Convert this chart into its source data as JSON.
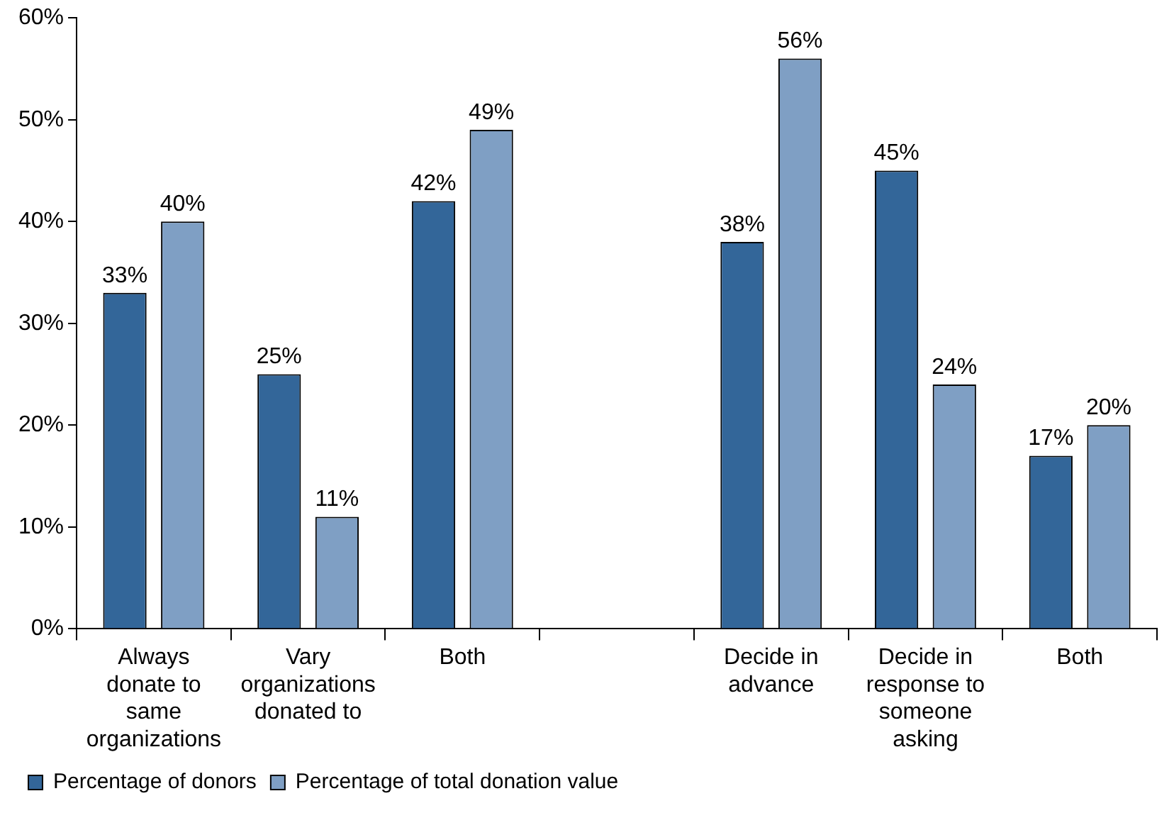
{
  "chart_data": {
    "type": "bar",
    "categories": [
      "Always donate to same organizations",
      "Vary organizations donated to",
      "Both",
      null,
      "Decide in advance",
      "Decide in response to someone asking",
      "Both"
    ],
    "series": [
      {
        "name": "Percentage of donors",
        "color": "#336699",
        "values": [
          33,
          25,
          42,
          null,
          38,
          45,
          17
        ],
        "value_labels": [
          "33%",
          "25%",
          "42%",
          null,
          "38%",
          "45%",
          "17%"
        ]
      },
      {
        "name": "Percentage of total donation value",
        "color": "#7f9fc4",
        "values": [
          40,
          11,
          49,
          null,
          56,
          24,
          20
        ],
        "value_labels": [
          "40%",
          "11%",
          "49%",
          null,
          "56%",
          "24%",
          "20%"
        ]
      }
    ],
    "ylim": [
      0,
      60
    ],
    "yticks": [
      {
        "value": 0,
        "label": "0%"
      },
      {
        "value": 10,
        "label": "10%"
      },
      {
        "value": 20,
        "label": "20%"
      },
      {
        "value": 30,
        "label": "30%"
      },
      {
        "value": 40,
        "label": "40%"
      },
      {
        "value": 50,
        "label": "50%"
      },
      {
        "value": 60,
        "label": "60%"
      }
    ],
    "grid": false,
    "legend": "bottom left"
  }
}
